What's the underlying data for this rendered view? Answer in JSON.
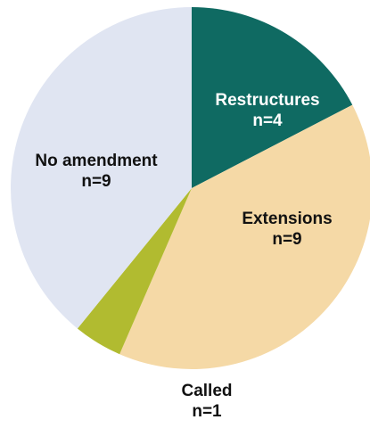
{
  "chart_data": {
    "type": "pie",
    "slices": [
      {
        "name": "Restructures",
        "count_label": "n=4",
        "value": 4,
        "color": "#0f6a62",
        "label_color": "#ffffff"
      },
      {
        "name": "Extensions",
        "count_label": "n=9",
        "value": 9,
        "color": "#f5d9a6",
        "label_color": "#111111"
      },
      {
        "name": "Called",
        "count_label": "n=1",
        "value": 1,
        "color": "#b1bb30",
        "label_color": "#111111"
      },
      {
        "name": "No amendment",
        "count_label": "n=9",
        "value": 9,
        "color": "#e0e5f2",
        "label_color": "#111111"
      }
    ]
  }
}
